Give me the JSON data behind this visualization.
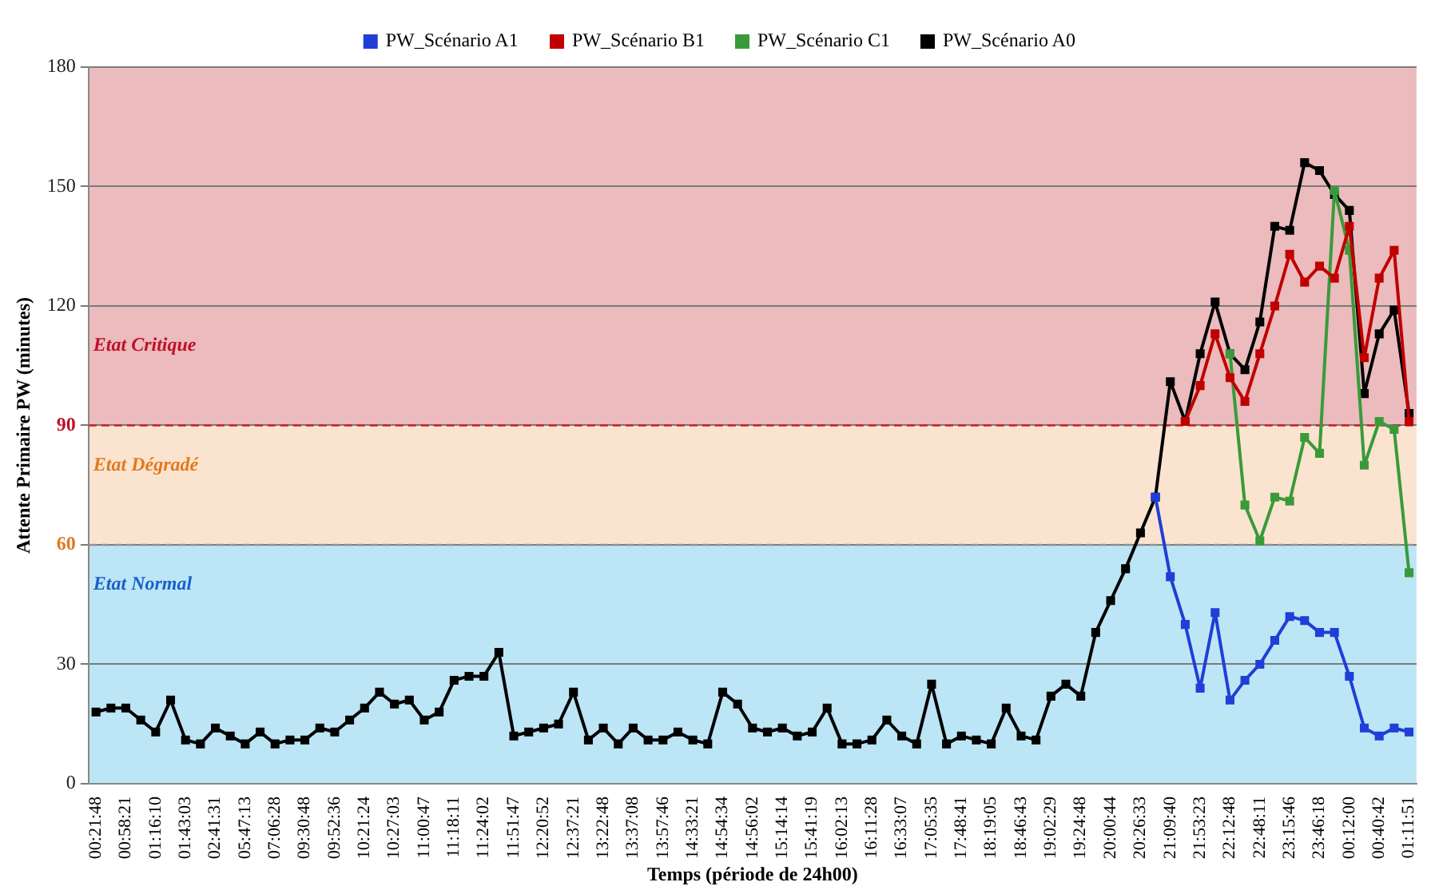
{
  "chart_data": {
    "type": "line",
    "xlabel": "Temps (période de 24h00)",
    "ylabel": "Attente Primaire PW (minutes)",
    "categories": [
      "00:21:48",
      null,
      "00:58:21",
      null,
      "01:16:10",
      null,
      "01:43:03",
      null,
      "02:41:31",
      null,
      "05:47:13",
      null,
      "07:06:28",
      null,
      "09:30:48",
      null,
      "09:52:36",
      null,
      "10:21:24",
      null,
      "10:27:03",
      null,
      "11:00:47",
      null,
      "11:18:11",
      null,
      "11:24:02",
      null,
      "11:51:47",
      null,
      "12:20:52",
      null,
      "12:37:21",
      null,
      "13:22:48",
      null,
      "13:37:08",
      null,
      "13:57:46",
      null,
      "14:33:21",
      null,
      "14:54:34",
      null,
      "14:56:02",
      null,
      "15:14:14",
      null,
      "15:41:19",
      null,
      "16:02:13",
      null,
      "16:11:28",
      null,
      "16:33:07",
      null,
      "17:05:35",
      null,
      "17:48:41",
      null,
      "18:19:05",
      null,
      "18:46:43",
      null,
      "19:02:29",
      null,
      "19:24:48",
      null,
      "20:00:44",
      null,
      "20:26:33",
      null,
      "21:09:40",
      null,
      "21:53:23",
      null,
      "22:12:48",
      null,
      "22:48:11",
      null,
      "23:15:46",
      null,
      "23:46:18",
      null,
      "00:12:00",
      null,
      "00:40:42",
      null,
      "01:11:51"
    ],
    "series": [
      {
        "name": "PW_Scénario A1",
        "color": "#1f3fd6",
        "values": [
          null,
          null,
          null,
          null,
          null,
          null,
          null,
          null,
          null,
          null,
          null,
          null,
          null,
          null,
          null,
          null,
          null,
          null,
          null,
          null,
          null,
          null,
          null,
          null,
          null,
          null,
          null,
          null,
          null,
          null,
          null,
          null,
          null,
          null,
          null,
          null,
          null,
          null,
          null,
          null,
          null,
          null,
          null,
          null,
          null,
          null,
          null,
          null,
          null,
          null,
          null,
          null,
          null,
          null,
          null,
          null,
          null,
          null,
          null,
          null,
          null,
          null,
          null,
          null,
          null,
          null,
          null,
          null,
          null,
          null,
          null,
          72,
          52,
          40,
          24,
          43,
          21,
          26,
          30,
          36,
          42,
          41,
          38,
          38,
          27,
          14,
          12,
          14,
          13
        ]
      },
      {
        "name": "PW_Scénario B1",
        "color": "#c00000",
        "values": [
          null,
          null,
          null,
          null,
          null,
          null,
          null,
          null,
          null,
          null,
          null,
          null,
          null,
          null,
          null,
          null,
          null,
          null,
          null,
          null,
          null,
          null,
          null,
          null,
          null,
          null,
          null,
          null,
          null,
          null,
          null,
          null,
          null,
          null,
          null,
          null,
          null,
          null,
          null,
          null,
          null,
          null,
          null,
          null,
          null,
          null,
          null,
          null,
          null,
          null,
          null,
          null,
          null,
          null,
          null,
          null,
          null,
          null,
          null,
          null,
          null,
          null,
          null,
          null,
          null,
          null,
          null,
          null,
          null,
          null,
          null,
          null,
          null,
          91,
          100,
          113,
          102,
          96,
          108,
          120,
          133,
          126,
          130,
          127,
          140,
          107,
          127,
          134,
          91
        ]
      },
      {
        "name": "PW_Scénario C1",
        "color": "#3a9a3a",
        "values": [
          null,
          null,
          null,
          null,
          null,
          null,
          null,
          null,
          null,
          null,
          null,
          null,
          null,
          null,
          null,
          null,
          null,
          null,
          null,
          null,
          null,
          null,
          null,
          null,
          null,
          null,
          null,
          null,
          null,
          null,
          null,
          null,
          null,
          null,
          null,
          null,
          null,
          null,
          null,
          null,
          null,
          null,
          null,
          null,
          null,
          null,
          null,
          null,
          null,
          null,
          null,
          null,
          null,
          null,
          null,
          null,
          null,
          null,
          null,
          null,
          null,
          null,
          null,
          null,
          null,
          null,
          null,
          null,
          null,
          null,
          null,
          null,
          null,
          null,
          null,
          null,
          108,
          70,
          61,
          72,
          71,
          87,
          83,
          149,
          134,
          80,
          91,
          89,
          53
        ]
      },
      {
        "name": "PW_Scénario A0",
        "color": "#000000",
        "values": [
          18,
          19,
          19,
          16,
          13,
          21,
          11,
          10,
          14,
          12,
          10,
          13,
          10,
          11,
          11,
          14,
          13,
          16,
          19,
          23,
          20,
          21,
          16,
          18,
          26,
          27,
          27,
          33,
          12,
          13,
          14,
          15,
          23,
          11,
          14,
          10,
          14,
          11,
          11,
          13,
          11,
          10,
          23,
          20,
          14,
          13,
          14,
          12,
          13,
          19,
          10,
          10,
          11,
          16,
          12,
          10,
          25,
          10,
          12,
          11,
          10,
          19,
          12,
          11,
          22,
          25,
          22,
          38,
          46,
          54,
          63,
          72,
          101,
          91,
          108,
          121,
          108,
          104,
          116,
          140,
          139,
          156,
          154,
          148,
          144,
          98,
          113,
          119,
          93
        ]
      }
    ],
    "ylim": [
      0,
      180
    ],
    "yticks": [
      0,
      30,
      60,
      90,
      120,
      150,
      180
    ],
    "grid": "y",
    "legend": "top",
    "marker": "square",
    "line_style": "solid",
    "bands": [
      {
        "axis": "y",
        "from": 0,
        "to": 60,
        "label": "Etat Normal",
        "color": "#bce6f6"
      },
      {
        "axis": "y",
        "from": 60,
        "to": 90,
        "label": "Etat Dégradé",
        "color": "#fbe4cf"
      },
      {
        "axis": "y",
        "from": 90,
        "to": 180,
        "label": "Etat Critique",
        "color": "#ebbbbd"
      }
    ],
    "ref_lines": [
      {
        "axis": "y",
        "value": 90,
        "color": "#d02020",
        "line_style": "dashed"
      },
      {
        "axis": "y",
        "value": 60,
        "color": "#909090",
        "line_style": "dashed"
      }
    ]
  }
}
